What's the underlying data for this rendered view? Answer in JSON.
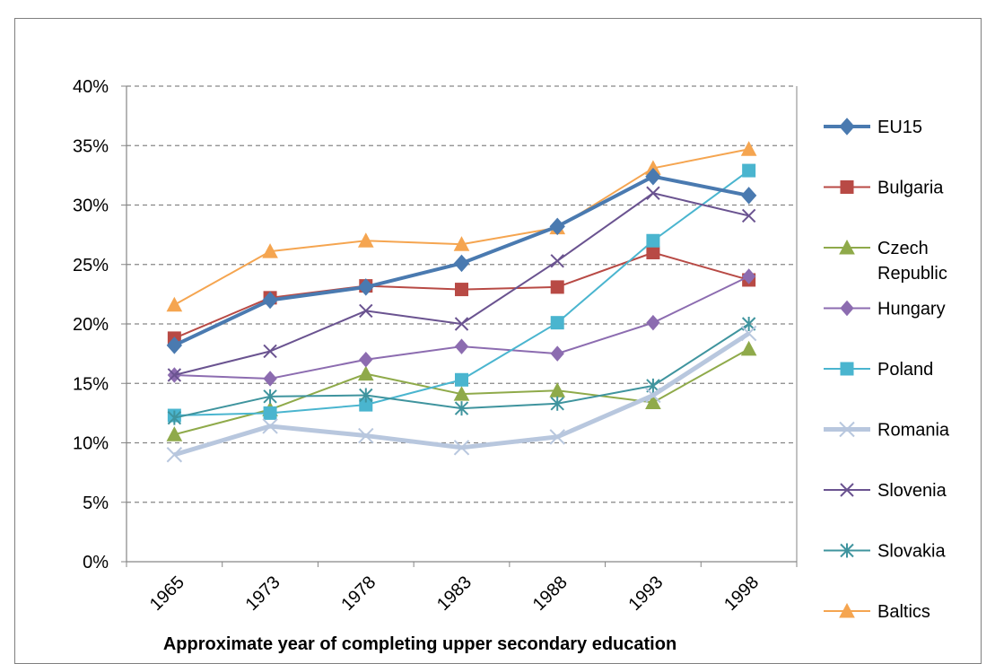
{
  "chart_data": {
    "type": "line",
    "title": "",
    "xlabel": "Approximate year of completing upper secondary education",
    "ylabel": "",
    "categories": [
      "1965",
      "1973",
      "1978",
      "1983",
      "1988",
      "1993",
      "1998"
    ],
    "yticks": [
      "0%",
      "5%",
      "10%",
      "15%",
      "20%",
      "25%",
      "30%",
      "35%",
      "40%"
    ],
    "ylim": [
      0,
      40
    ],
    "grid": "horizontal dashed",
    "legend_position": "right",
    "series": [
      {
        "name": "EU15",
        "values": [
          18.2,
          22.0,
          23.1,
          25.1,
          28.2,
          32.4,
          30.8
        ],
        "color": "#4a7ab0",
        "marker": "diamond",
        "width": 4
      },
      {
        "name": "Bulgaria",
        "values": [
          18.8,
          22.2,
          23.2,
          22.9,
          23.1,
          26.0,
          23.7
        ],
        "color": "#b84a45",
        "marker": "square",
        "width": 2
      },
      {
        "name": "Czech Republic",
        "values": [
          10.7,
          12.8,
          15.8,
          14.1,
          14.4,
          13.4,
          17.9
        ],
        "color": "#8faa4a",
        "marker": "triangle",
        "width": 2
      },
      {
        "name": "Hungary",
        "values": [
          15.7,
          15.4,
          17.0,
          18.1,
          17.5,
          20.1,
          24.0
        ],
        "color": "#8c6cb0",
        "marker": "diamond",
        "width": 2
      },
      {
        "name": "Poland",
        "values": [
          12.3,
          12.5,
          13.2,
          15.3,
          20.1,
          27.0,
          32.9
        ],
        "color": "#4ab5cf",
        "marker": "square",
        "width": 2
      },
      {
        "name": "Romania",
        "values": [
          9.0,
          11.4,
          10.6,
          9.6,
          10.5,
          14.0,
          19.2
        ],
        "color": "#b8c7de",
        "marker": "x",
        "width": 5
      },
      {
        "name": "Slovenia",
        "values": [
          15.7,
          17.7,
          21.1,
          20.0,
          25.3,
          31.0,
          29.1
        ],
        "color": "#6a5390",
        "marker": "x",
        "width": 2
      },
      {
        "name": "Slovakia",
        "values": [
          12.1,
          13.9,
          14.0,
          12.9,
          13.3,
          14.8,
          20.0
        ],
        "color": "#3f949e",
        "marker": "asterisk",
        "width": 2
      },
      {
        "name": "Baltics",
        "values": [
          21.6,
          26.1,
          27.0,
          26.7,
          28.1,
          33.1,
          34.7
        ],
        "color": "#f5a550",
        "marker": "triangle",
        "width": 2
      }
    ],
    "legend_labels": [
      [
        "EU15"
      ],
      [
        "Bulgaria"
      ],
      [
        "Czech",
        "Republic"
      ],
      [
        "Hungary"
      ],
      [
        "Poland"
      ],
      [
        "Romania"
      ],
      [
        "Slovenia"
      ],
      [
        "Slovakia"
      ],
      [
        "Baltics"
      ]
    ]
  }
}
